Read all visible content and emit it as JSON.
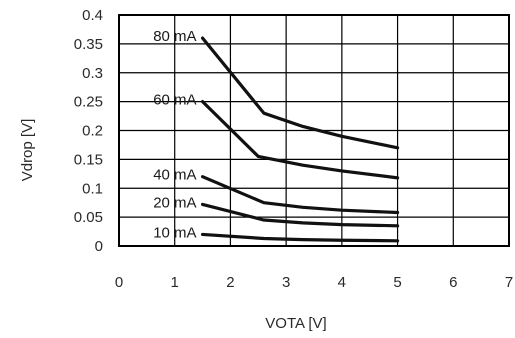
{
  "chart_data": {
    "type": "line",
    "xlabel": "VOTA [V]",
    "ylabel": "Vdrop [V]",
    "xlim": [
      0,
      7
    ],
    "ylim": [
      0,
      0.4
    ],
    "x_ticks": [
      "0",
      "1",
      "2",
      "3",
      "4",
      "5",
      "6",
      "7"
    ],
    "y_ticks": [
      "0",
      "0.05",
      "0.1",
      "0.15",
      "0.2",
      "0.25",
      "0.3",
      "0.35",
      "0.4"
    ],
    "grid": true,
    "series": [
      {
        "name": "80 mA",
        "points": [
          [
            1.5,
            0.36
          ],
          [
            2.6,
            0.23
          ],
          [
            3.3,
            0.207
          ],
          [
            4.0,
            0.19
          ],
          [
            5.0,
            0.17
          ]
        ]
      },
      {
        "name": "60 mA",
        "points": [
          [
            1.5,
            0.25
          ],
          [
            2.5,
            0.155
          ],
          [
            3.3,
            0.14
          ],
          [
            4.0,
            0.13
          ],
          [
            5.0,
            0.118
          ]
        ]
      },
      {
        "name": "40 mA",
        "points": [
          [
            1.5,
            0.12
          ],
          [
            2.6,
            0.075
          ],
          [
            3.3,
            0.067
          ],
          [
            4.0,
            0.062
          ],
          [
            5.0,
            0.058
          ]
        ]
      },
      {
        "name": "20 mA",
        "points": [
          [
            1.5,
            0.072
          ],
          [
            2.6,
            0.045
          ],
          [
            3.3,
            0.04
          ],
          [
            4.0,
            0.037
          ],
          [
            5.0,
            0.035
          ]
        ]
      },
      {
        "name": "10 mA",
        "points": [
          [
            1.5,
            0.02
          ],
          [
            2.6,
            0.013
          ],
          [
            3.3,
            0.011
          ],
          [
            4.0,
            0.01
          ],
          [
            5.0,
            0.009
          ]
        ]
      }
    ]
  }
}
